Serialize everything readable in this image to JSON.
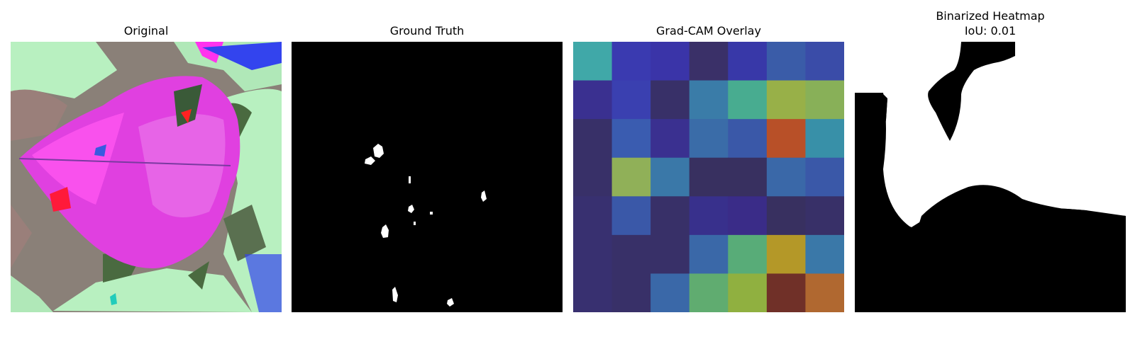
{
  "figure": {
    "panels": [
      {
        "id": "original",
        "title": "Original"
      },
      {
        "id": "ground_truth",
        "title": "Ground Truth"
      },
      {
        "id": "gradcam_overlay",
        "title": "Grad-CAM Overlay"
      },
      {
        "id": "binarized_heatmap",
        "title": "Binarized Heatmap",
        "subtitle": "IoU: 0.01"
      }
    ],
    "gradcam_grid": {
      "rows": 7,
      "cols": 7,
      "colors": [
        [
          "#40a8a8",
          "#3a3ab0",
          "#3a34a8",
          "#3a3068",
          "#3838a8",
          "#3a5ca8",
          "#3a4ca8"
        ],
        [
          "#3a3090",
          "#3a40b0",
          "#383068",
          "#3a7ca8",
          "#48ac90",
          "#98b048",
          "#88b058"
        ],
        [
          "#383068",
          "#3a5cb0",
          "#3a3090",
          "#3a6ca8",
          "#3a58a8",
          "#b85028",
          "#3890a8"
        ],
        [
          "#383068",
          "#90b058",
          "#3a78a8",
          "#383060",
          "#383060",
          "#3a68a8",
          "#3a58a8"
        ],
        [
          "#383070",
          "#3a58a8",
          "#383068",
          "#38308c",
          "#3a2c88",
          "#383060",
          "#383068"
        ],
        [
          "#383070",
          "#383068",
          "#383068",
          "#3a68a8",
          "#58ac78",
          "#b49828",
          "#3a78a8"
        ],
        [
          "#383070",
          "#383068",
          "#3a68a8",
          "#60ac70",
          "#90b040",
          "#703028",
          "#b06830"
        ]
      ]
    }
  }
}
